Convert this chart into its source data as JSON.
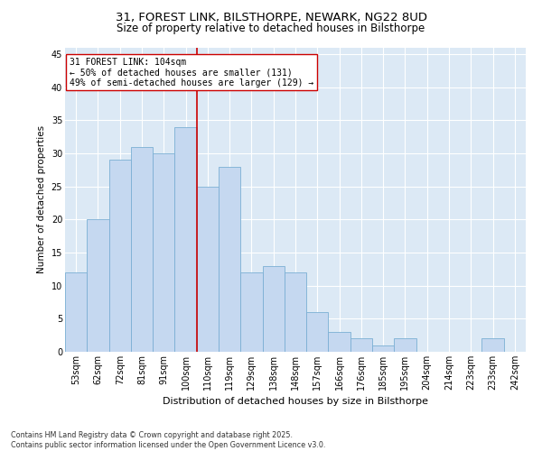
{
  "title1": "31, FOREST LINK, BILSTHORPE, NEWARK, NG22 8UD",
  "title2": "Size of property relative to detached houses in Bilsthorpe",
  "xlabel": "Distribution of detached houses by size in Bilsthorpe",
  "ylabel": "Number of detached properties",
  "categories": [
    "53sqm",
    "62sqm",
    "72sqm",
    "81sqm",
    "91sqm",
    "100sqm",
    "110sqm",
    "119sqm",
    "129sqm",
    "138sqm",
    "148sqm",
    "157sqm",
    "166sqm",
    "176sqm",
    "185sqm",
    "195sqm",
    "204sqm",
    "214sqm",
    "223sqm",
    "233sqm",
    "242sqm"
  ],
  "values": [
    12,
    20,
    29,
    31,
    30,
    34,
    25,
    28,
    12,
    13,
    12,
    6,
    3,
    2,
    1,
    2,
    0,
    0,
    0,
    2,
    0
  ],
  "bar_color": "#c5d8f0",
  "bar_edge_color": "#7bafd4",
  "vline_x": 5.5,
  "vline_color": "#cc0000",
  "annotation_text": "31 FOREST LINK: 104sqm\n← 50% of detached houses are smaller (131)\n49% of semi-detached houses are larger (129) →",
  "annotation_box_color": "#ffffff",
  "annotation_box_edge": "#cc0000",
  "ylim": [
    0,
    46
  ],
  "yticks": [
    0,
    5,
    10,
    15,
    20,
    25,
    30,
    35,
    40,
    45
  ],
  "background_color": "#dce9f5",
  "footer_text": "Contains HM Land Registry data © Crown copyright and database right 2025.\nContains public sector information licensed under the Open Government Licence v3.0.",
  "title1_fontsize": 9.5,
  "title2_fontsize": 8.5,
  "xlabel_fontsize": 8,
  "ylabel_fontsize": 7.5,
  "tick_fontsize": 7,
  "annotation_fontsize": 7,
  "footer_fontsize": 5.8
}
